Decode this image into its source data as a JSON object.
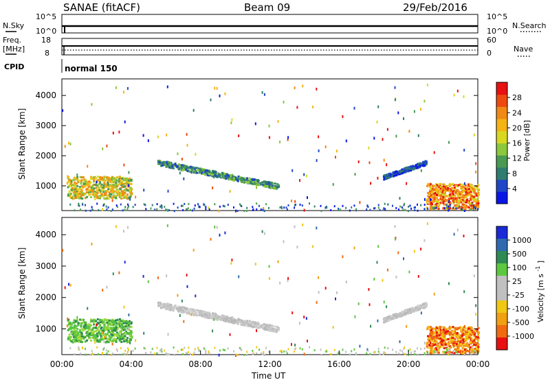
{
  "header": {
    "station": "SANAE (fitACF)",
    "beam": "Beam 09",
    "date": "29/Feb/2016"
  },
  "top_panels": {
    "nsky_label": "N.Sky",
    "nsearch_label": "N.Search",
    "nsky_ticks": [
      "10^5",
      "10^0"
    ],
    "nsearch_ticks": [
      "10^5",
      "10^0"
    ],
    "freq_label": "Freq.",
    "freq_unit": "[MHz]",
    "freq_ticks": [
      "18",
      "8"
    ],
    "nave_label": "Nave",
    "nave_ticks": [
      "60",
      "0"
    ],
    "cpid_label": "CPID",
    "cpid_value": "normal 150"
  },
  "chart_data": [
    {
      "type": "heatmap",
      "name": "power",
      "ylabel": "Slant Range [km]",
      "xlabel": "",
      "ylim": [
        180,
        4550
      ],
      "xlim": [
        0,
        24
      ],
      "yticks": [
        1000,
        2000,
        3000,
        4000
      ],
      "xticks": [
        0,
        4,
        8,
        12,
        16,
        20,
        24
      ],
      "colorbar": {
        "label": "Power [dB]",
        "ticks": [
          "4",
          "8",
          "12",
          "16",
          "20",
          "24",
          "28"
        ],
        "colors": [
          "#0a16e6",
          "#1f46c8",
          "#2f7d70",
          "#4a9a52",
          "#8cc83c",
          "#d8d822",
          "#f5b414",
          "#f08a14",
          "#ee4a10",
          "#e81010"
        ]
      },
      "scatter_regions": [
        {
          "t": [
            0.3,
            4.0
          ],
          "r": [
            600,
            1350
          ],
          "level": 5,
          "note": "early dense echo cluster"
        },
        {
          "t": [
            5.5,
            12.5
          ],
          "r": [
            900,
            1800
          ],
          "level": 4,
          "note": "descending arc"
        },
        {
          "t": [
            18.5,
            21.0
          ],
          "r": [
            1200,
            1900
          ],
          "level": 2,
          "note": "evening band"
        },
        {
          "t": [
            21.0,
            24.0
          ],
          "r": [
            250,
            1100
          ],
          "level": 7,
          "note": "late strong echoes"
        }
      ]
    },
    {
      "type": "heatmap",
      "name": "velocity",
      "ylabel": "Slant Range [km]",
      "xlabel": "Time UT",
      "ylim": [
        180,
        4550
      ],
      "xlim": [
        0,
        24
      ],
      "yticks": [
        1000,
        2000,
        3000,
        4000
      ],
      "xticks": [
        0,
        4,
        8,
        12,
        16,
        20,
        24
      ],
      "xtick_labels": [
        "00:00",
        "04:00",
        "08:00",
        "12:00",
        "16:00",
        "20:00",
        "00:00"
      ],
      "colorbar": {
        "label": "Velocity [m s",
        "label_sup": "-1",
        "label_end": "]",
        "ticks": [
          "1000",
          "500",
          "100",
          "25",
          "-25",
          "-100",
          "-500",
          "-1000"
        ],
        "colors": [
          "#1a2ad8",
          "#2f6ab0",
          "#2e8a54",
          "#5cc840",
          "#c0c0c0",
          "#c0c0c0",
          "#f0c814",
          "#f0a010",
          "#f06a10",
          "#e81010"
        ]
      },
      "scatter_regions": [
        {
          "t": [
            0.3,
            4.0
          ],
          "r": [
            600,
            1350
          ],
          "level": "green",
          "note": "early cluster"
        },
        {
          "t": [
            5.5,
            12.5
          ],
          "r": [
            900,
            1800
          ],
          "level": "grey",
          "note": "near zero arc"
        },
        {
          "t": [
            18.5,
            21.0
          ],
          "r": [
            1200,
            1900
          ],
          "level": "grey",
          "note": "evening band"
        },
        {
          "t": [
            21.0,
            24.0
          ],
          "r": [
            250,
            1100
          ],
          "level": "orange",
          "note": "late negative velocities"
        }
      ]
    }
  ]
}
